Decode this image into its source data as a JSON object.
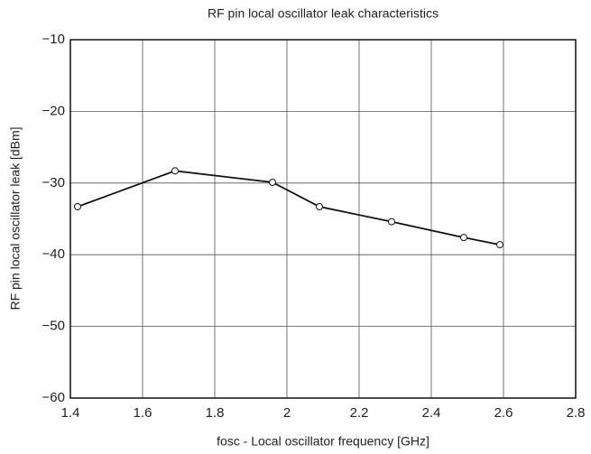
{
  "chart_data": {
    "type": "line",
    "title": "RF pin local oscillator leak characteristics",
    "xlabel": "fosc - Local oscillator frequency [GHz]",
    "ylabel": "RF pin local oscillator leak [dBm]",
    "x": [
      1.42,
      1.69,
      1.96,
      2.09,
      2.29,
      2.49,
      2.59
    ],
    "series": [
      {
        "name": "RF pin local oscillator leak",
        "color": "#111111",
        "values": [
          -33.3,
          -28.3,
          -29.9,
          -33.3,
          -35.4,
          -37.6,
          -38.6
        ]
      }
    ],
    "xlim": [
      1.4,
      2.8
    ],
    "xticks": [
      1.4,
      1.6,
      1.8,
      2,
      2.2,
      2.4,
      2.6,
      2.8
    ],
    "ylim": [
      -60,
      -10
    ],
    "yticks": [
      {
        "value": -60,
        "label": "−60"
      },
      {
        "value": -50,
        "label": "−50"
      },
      {
        "value": -40,
        "label": "−40"
      },
      {
        "value": -30,
        "label": "−30"
      },
      {
        "value": -20,
        "label": "−20"
      },
      {
        "value": -10,
        "label": "−10"
      }
    ],
    "grid": true
  }
}
